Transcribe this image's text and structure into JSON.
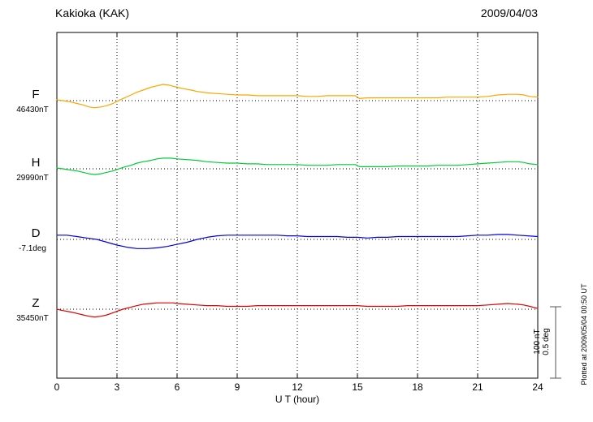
{
  "header": {
    "title": "Kakioka (KAK)",
    "date": "2009/04/03"
  },
  "x_axis": {
    "label": "U T (hour)",
    "ticks": [
      0,
      3,
      6,
      9,
      12,
      15,
      18,
      21,
      24
    ],
    "min": 0,
    "max": 24
  },
  "scale_bar": {
    "nt_label": "100 nT",
    "deg_label": "0.5 deg"
  },
  "plotted_note": "Plotted at 2009/05/04 00:50 UT",
  "chart_data": {
    "type": "line",
    "title": "Kakioka (KAK) magnetogram, 2009/04/03",
    "xlabel": "U T (hour)",
    "x_range": [
      0,
      24
    ],
    "grid": "dotted vertical gridlines every 3 hours; dotted horizontal baseline for each channel",
    "legend_position": "left channel labels",
    "scale": {
      "nT_per_bar": 100,
      "deg_per_bar": 0.5
    },
    "series": [
      {
        "name": "F",
        "unit": "nT",
        "color": "#FFA500",
        "baseline_value": 46430,
        "baseline_label": "46430nT",
        "offsets": [
          [
            0,
            1
          ],
          [
            0.3,
            0
          ],
          [
            0.7,
            -2
          ],
          [
            1,
            -4
          ],
          [
            1.3,
            -6
          ],
          [
            1.6,
            -9
          ],
          [
            1.9,
            -10
          ],
          [
            2.2,
            -9
          ],
          [
            2.5,
            -7
          ],
          [
            2.8,
            -4
          ],
          [
            3,
            -1
          ],
          [
            3.3,
            3
          ],
          [
            3.7,
            8
          ],
          [
            4,
            12
          ],
          [
            4.3,
            15
          ],
          [
            4.7,
            19
          ],
          [
            5,
            21
          ],
          [
            5.3,
            23
          ],
          [
            5.6,
            22
          ],
          [
            6,
            19
          ],
          [
            6.3,
            17
          ],
          [
            6.7,
            15
          ],
          [
            7,
            13
          ],
          [
            7.5,
            11
          ],
          [
            8,
            10
          ],
          [
            8.5,
            9
          ],
          [
            9,
            8
          ],
          [
            9.5,
            8
          ],
          [
            10,
            7
          ],
          [
            10.5,
            7
          ],
          [
            11,
            7
          ],
          [
            11.5,
            7
          ],
          [
            12,
            7
          ],
          [
            12.5,
            6
          ],
          [
            13,
            6
          ],
          [
            13.5,
            7
          ],
          [
            14,
            7
          ],
          [
            14.5,
            7
          ],
          [
            14.9,
            7
          ],
          [
            15.1,
            3
          ],
          [
            15.5,
            4
          ],
          [
            16,
            4
          ],
          [
            16.5,
            4
          ],
          [
            17,
            4
          ],
          [
            17.5,
            4
          ],
          [
            18,
            4
          ],
          [
            18.5,
            4
          ],
          [
            19,
            4
          ],
          [
            19.5,
            5
          ],
          [
            20,
            5
          ],
          [
            20.5,
            5
          ],
          [
            21,
            5
          ],
          [
            21.5,
            6
          ],
          [
            22,
            8
          ],
          [
            22.5,
            9
          ],
          [
            23,
            9
          ],
          [
            23.3,
            8
          ],
          [
            23.6,
            6
          ],
          [
            24,
            5
          ]
        ]
      },
      {
        "name": "H",
        "unit": "nT",
        "color": "#00CC33",
        "baseline_value": 29990,
        "baseline_label": "29990nT",
        "offsets": [
          [
            0,
            1
          ],
          [
            0.3,
            0
          ],
          [
            0.7,
            -2
          ],
          [
            1,
            -3
          ],
          [
            1.3,
            -5
          ],
          [
            1.6,
            -7
          ],
          [
            1.9,
            -8
          ],
          [
            2.2,
            -7
          ],
          [
            2.5,
            -5
          ],
          [
            2.8,
            -3
          ],
          [
            3,
            -1
          ],
          [
            3.3,
            2
          ],
          [
            3.7,
            5
          ],
          [
            4,
            8
          ],
          [
            4.3,
            10
          ],
          [
            4.7,
            12
          ],
          [
            5,
            14
          ],
          [
            5.3,
            15
          ],
          [
            5.7,
            15
          ],
          [
            6,
            14
          ],
          [
            6.5,
            13
          ],
          [
            7,
            12
          ],
          [
            7.5,
            10
          ],
          [
            8,
            9
          ],
          [
            8.5,
            8
          ],
          [
            9,
            8
          ],
          [
            9.5,
            7
          ],
          [
            10,
            7
          ],
          [
            10.5,
            6
          ],
          [
            11,
            6
          ],
          [
            11.5,
            6
          ],
          [
            12,
            6
          ],
          [
            12.5,
            5
          ],
          [
            13,
            5
          ],
          [
            13.5,
            5
          ],
          [
            14,
            6
          ],
          [
            14.5,
            6
          ],
          [
            14.9,
            6
          ],
          [
            15.1,
            3
          ],
          [
            15.5,
            3
          ],
          [
            16,
            3
          ],
          [
            16.5,
            3
          ],
          [
            17,
            4
          ],
          [
            17.5,
            4
          ],
          [
            18,
            4
          ],
          [
            18.5,
            4
          ],
          [
            19,
            5
          ],
          [
            19.5,
            5
          ],
          [
            20,
            5
          ],
          [
            20.5,
            6
          ],
          [
            21,
            7
          ],
          [
            21.5,
            8
          ],
          [
            22,
            9
          ],
          [
            22.5,
            10
          ],
          [
            23,
            10
          ],
          [
            23.3,
            9
          ],
          [
            23.6,
            7
          ],
          [
            24,
            6
          ]
        ]
      },
      {
        "name": "D",
        "unit": "deg",
        "color": "#0000E0",
        "baseline_value": -7.1,
        "baseline_label": "-7.1deg",
        "offsets": [
          [
            0,
            0.03
          ],
          [
            0.5,
            0.03
          ],
          [
            1,
            0.02
          ],
          [
            1.5,
            0.01
          ],
          [
            2,
            0
          ],
          [
            2.5,
            -0.02
          ],
          [
            3,
            -0.04
          ],
          [
            3.5,
            -0.055
          ],
          [
            4,
            -0.065
          ],
          [
            4.5,
            -0.065
          ],
          [
            5,
            -0.06
          ],
          [
            5.5,
            -0.05
          ],
          [
            6,
            -0.035
          ],
          [
            6.5,
            -0.02
          ],
          [
            7,
            0
          ],
          [
            7.5,
            0.015
          ],
          [
            8,
            0.025
          ],
          [
            8.5,
            0.03
          ],
          [
            9,
            0.03
          ],
          [
            9.5,
            0.03
          ],
          [
            10,
            0.03
          ],
          [
            10.5,
            0.03
          ],
          [
            11,
            0.03
          ],
          [
            11.5,
            0.025
          ],
          [
            12,
            0.025
          ],
          [
            12.5,
            0.02
          ],
          [
            13,
            0.02
          ],
          [
            13.5,
            0.02
          ],
          [
            14,
            0.02
          ],
          [
            14.5,
            0.015
          ],
          [
            15,
            0.015
          ],
          [
            15.5,
            0.01
          ],
          [
            16,
            0.015
          ],
          [
            16.5,
            0.015
          ],
          [
            17,
            0.02
          ],
          [
            17.5,
            0.02
          ],
          [
            18,
            0.02
          ],
          [
            18.5,
            0.02
          ],
          [
            19,
            0.02
          ],
          [
            19.5,
            0.02
          ],
          [
            20,
            0.02
          ],
          [
            20.5,
            0.025
          ],
          [
            21,
            0.03
          ],
          [
            21.5,
            0.03
          ],
          [
            22,
            0.035
          ],
          [
            22.5,
            0.035
          ],
          [
            23,
            0.03
          ],
          [
            23.5,
            0.025
          ],
          [
            24,
            0.02
          ]
        ]
      },
      {
        "name": "Z",
        "unit": "nT",
        "color": "#E00000",
        "baseline_value": 35450,
        "baseline_label": "35450nT",
        "offsets": [
          [
            0,
            0
          ],
          [
            0.3,
            -2
          ],
          [
            0.7,
            -4
          ],
          [
            1,
            -6
          ],
          [
            1.3,
            -8
          ],
          [
            1.6,
            -10
          ],
          [
            1.9,
            -11
          ],
          [
            2.2,
            -10
          ],
          [
            2.5,
            -8
          ],
          [
            2.8,
            -5
          ],
          [
            3,
            -3
          ],
          [
            3.3,
            0
          ],
          [
            3.7,
            3
          ],
          [
            4,
            5
          ],
          [
            4.3,
            7
          ],
          [
            4.7,
            8
          ],
          [
            5,
            9
          ],
          [
            5.4,
            9
          ],
          [
            5.8,
            9
          ],
          [
            6,
            8
          ],
          [
            6.5,
            7
          ],
          [
            7,
            6
          ],
          [
            7.5,
            5
          ],
          [
            8,
            5
          ],
          [
            8.5,
            4
          ],
          [
            9,
            4
          ],
          [
            9.5,
            4
          ],
          [
            10,
            5
          ],
          [
            10.5,
            5
          ],
          [
            11,
            5
          ],
          [
            11.5,
            5
          ],
          [
            12,
            5
          ],
          [
            12.5,
            5
          ],
          [
            13,
            5
          ],
          [
            13.5,
            5
          ],
          [
            14,
            5
          ],
          [
            14.5,
            5
          ],
          [
            15,
            5
          ],
          [
            15.5,
            4
          ],
          [
            16,
            4
          ],
          [
            16.5,
            4
          ],
          [
            17,
            4
          ],
          [
            17.5,
            5
          ],
          [
            18,
            5
          ],
          [
            18.5,
            5
          ],
          [
            19,
            5
          ],
          [
            19.5,
            5
          ],
          [
            20,
            5
          ],
          [
            20.5,
            5
          ],
          [
            21,
            5
          ],
          [
            21.5,
            6
          ],
          [
            22,
            7
          ],
          [
            22.5,
            8
          ],
          [
            23,
            7
          ],
          [
            23.3,
            6
          ],
          [
            23.6,
            4
          ],
          [
            24,
            1
          ]
        ]
      }
    ]
  }
}
